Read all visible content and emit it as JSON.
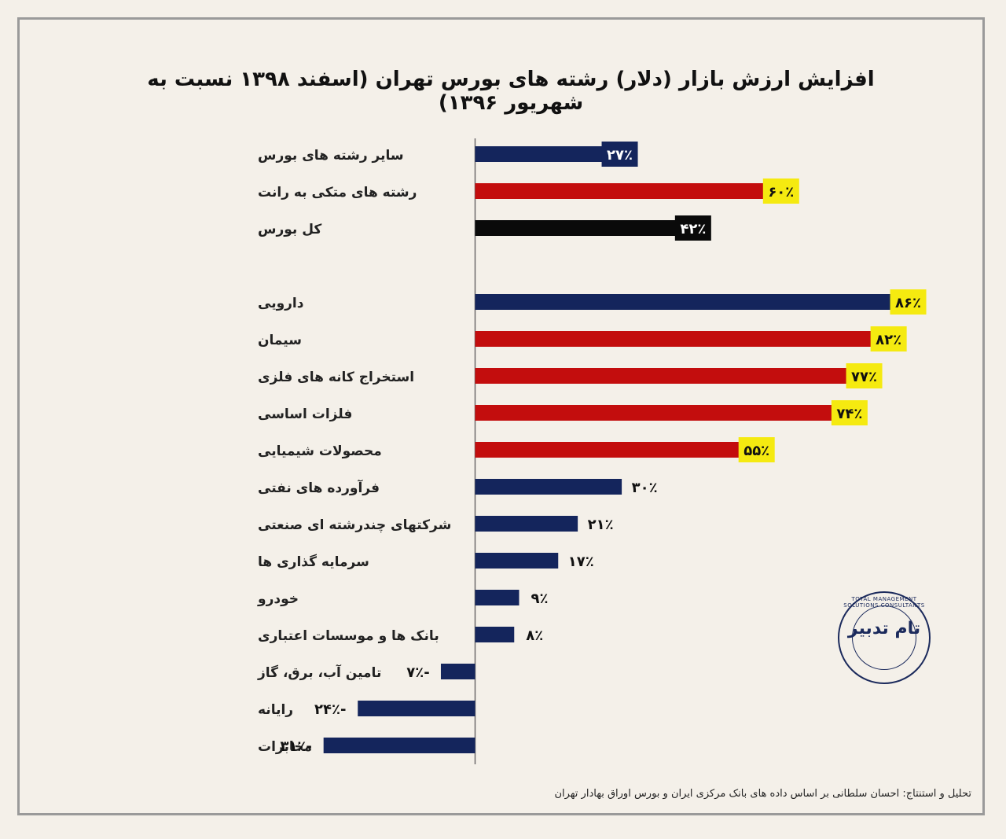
{
  "title": "افزایش ارزش بازار (دلار) رشته های بورس تهران (اسفند ۱۳۹۸ نسبت به شهریور ۱۳۹۶)",
  "source": "تحلیل و استنتاج: احسان سلطانی بر اساس داده های بانک مرکزی ایران و بورس اوراق بهادار تهران",
  "logo": {
    "text": "تام تدبیر",
    "ring": "TOTAL MANAGEMENT SOLUTIONS CONSULTANTS"
  },
  "colors": {
    "navy": "#14255c",
    "red": "#c30d0d",
    "black": "#0a0a0a",
    "yellow": "#f5ea10",
    "axis": "#6b6b6b"
  },
  "chart_data": {
    "type": "bar",
    "orientation": "horizontal",
    "title": "افزایش ارزش بازار (دلار) رشته های بورس تهران (اسفند ۱۳۹۸ نسبت به شهریور ۱۳۹۶)",
    "xlabel": "",
    "ylabel": "",
    "unit": "%",
    "xlim": [
      -31,
      86
    ],
    "categories": [
      "سایر رشته های بورس",
      "رشته های متکی به رانت",
      "کل بورس",
      "دارویی",
      "سیمان",
      "استخراج کانه های فلزی",
      "فلزات اساسی",
      "محصولات شیمیایی",
      "فرآورده های نفتی",
      "شرکتهای چندرشته ای صنعتی",
      "سرمایه گذاری ها",
      "خودرو",
      "بانک ها و موسسات اعتباری",
      "تامین آب، برق، گاز",
      "رایانه",
      "مخابرات"
    ],
    "values": [
      27,
      60,
      42,
      86,
      82,
      77,
      74,
      55,
      30,
      21,
      17,
      9,
      8,
      -7,
      -24,
      -31
    ],
    "value_labels": [
      "۲۷٪",
      "۶۰٪",
      "۴۲٪",
      "۸۶٪",
      "۸۲٪",
      "۷۷٪",
      "۷۴٪",
      "۵۵٪",
      "۳۰٪",
      "۲۱٪",
      "۱۷٪",
      "۹٪",
      "۸٪",
      "۷٪-",
      "۲۴٪-",
      "۳۱٪-"
    ],
    "bar_colors": [
      "navy",
      "red",
      "black",
      "navy",
      "red",
      "red",
      "red",
      "red",
      "navy",
      "navy",
      "navy",
      "navy",
      "navy",
      "navy",
      "navy",
      "navy"
    ],
    "label_styles": [
      "boxed-navy",
      "boxed-yellow",
      "boxed-black",
      "boxed-yellow",
      "boxed-yellow",
      "boxed-yellow",
      "boxed-yellow",
      "boxed-yellow",
      "plain",
      "plain",
      "plain",
      "plain",
      "plain",
      "plain",
      "plain",
      "plain"
    ]
  }
}
